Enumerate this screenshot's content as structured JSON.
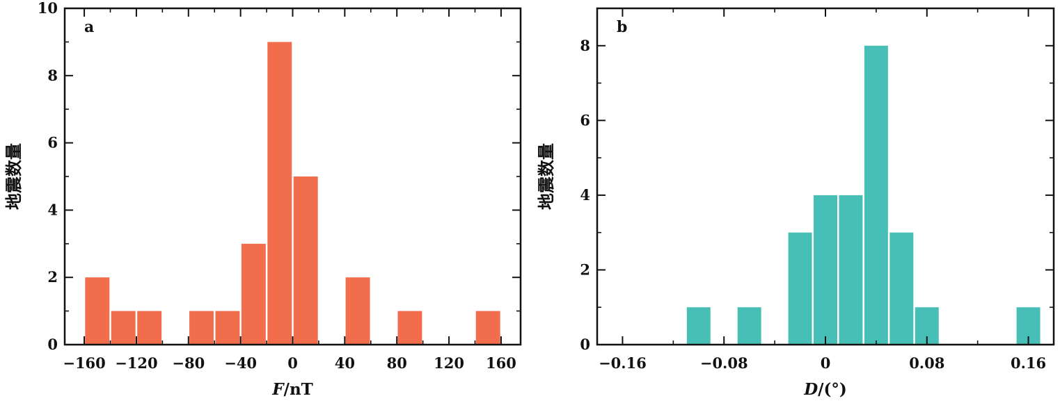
{
  "chart_data": [
    {
      "type": "bar",
      "panel_label": "a",
      "xlabel_symbol": "F",
      "xlabel_unit": "/nT",
      "ylabel": "地震数量",
      "bar_color": "#F26D4B",
      "xlim": [
        -175,
        175
      ],
      "ylim": [
        0,
        10
      ],
      "xticks": [
        -160,
        -120,
        -80,
        -40,
        0,
        40,
        80,
        120,
        160
      ],
      "xtick_labels": [
        "−160",
        "−120",
        "−80",
        "−40",
        "0",
        "40",
        "80",
        "120",
        "160"
      ],
      "yticks": [
        0,
        2,
        4,
        6,
        8,
        10
      ],
      "ytick_labels": [
        "0",
        "2",
        "4",
        "6",
        "8",
        "10"
      ],
      "bin_width": 20,
      "bars": [
        {
          "x": -150,
          "value": 2
        },
        {
          "x": -130,
          "value": 1
        },
        {
          "x": -110,
          "value": 1
        },
        {
          "x": -70,
          "value": 1
        },
        {
          "x": -50,
          "value": 1
        },
        {
          "x": -30,
          "value": 3
        },
        {
          "x": -10,
          "value": 9
        },
        {
          "x": 10,
          "value": 5
        },
        {
          "x": 50,
          "value": 2
        },
        {
          "x": 90,
          "value": 1
        },
        {
          "x": 150,
          "value": 1
        }
      ]
    },
    {
      "type": "bar",
      "panel_label": "b",
      "xlabel_symbol": "D",
      "xlabel_unit": "/(°)",
      "ylabel": "地震数量",
      "bar_color": "#47BFB6",
      "xlim": [
        -0.18,
        0.18
      ],
      "ylim": [
        0,
        9
      ],
      "xticks": [
        -0.16,
        -0.08,
        0,
        0.08,
        0.16
      ],
      "xtick_labels": [
        "−0.16",
        "−0.08",
        "0",
        "0.08",
        "0.16"
      ],
      "yticks": [
        0,
        2,
        4,
        6,
        8
      ],
      "ytick_labels": [
        "0",
        "2",
        "4",
        "6",
        "8"
      ],
      "bin_width": 0.02,
      "bars": [
        {
          "x": -0.1,
          "value": 1
        },
        {
          "x": -0.06,
          "value": 1
        },
        {
          "x": -0.02,
          "value": 3
        },
        {
          "x": 0.0,
          "value": 4
        },
        {
          "x": 0.02,
          "value": 4
        },
        {
          "x": 0.04,
          "value": 8
        },
        {
          "x": 0.06,
          "value": 3
        },
        {
          "x": 0.08,
          "value": 1
        },
        {
          "x": 0.16,
          "value": 1
        }
      ]
    }
  ]
}
